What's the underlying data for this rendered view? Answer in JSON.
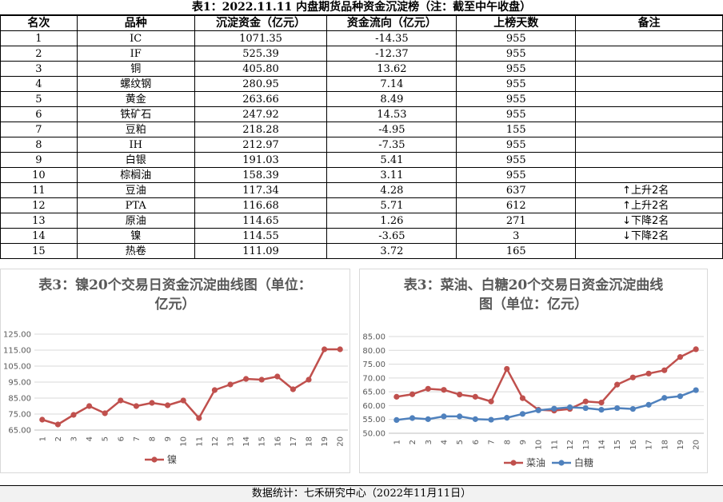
{
  "title": "表1：2022.11.11 内盘期货品种资金沉淀榜（注：截至中午收盘）",
  "table": {
    "headers": [
      "名次",
      "品种",
      "沉淀资金（亿元）",
      "资金流向（亿元）",
      "上榜天数",
      "备注"
    ],
    "rows": [
      [
        "1",
        "IC",
        "1071.35",
        "-14.35",
        "955",
        ""
      ],
      [
        "2",
        "IF",
        "525.39",
        "-12.37",
        "955",
        ""
      ],
      [
        "3",
        "铜",
        "405.80",
        "13.62",
        "955",
        ""
      ],
      [
        "4",
        "螺纹钢",
        "280.95",
        "7.14",
        "955",
        ""
      ],
      [
        "5",
        "黄金",
        "263.66",
        "8.49",
        "955",
        ""
      ],
      [
        "6",
        "铁矿石",
        "247.92",
        "14.53",
        "955",
        ""
      ],
      [
        "7",
        "豆粕",
        "218.28",
        "-4.95",
        "155",
        ""
      ],
      [
        "8",
        "IH",
        "212.97",
        "-7.35",
        "955",
        ""
      ],
      [
        "9",
        "白银",
        "191.03",
        "5.41",
        "955",
        ""
      ],
      [
        "10",
        "棕榈油",
        "158.39",
        "3.11",
        "955",
        ""
      ],
      [
        "11",
        "豆油",
        "117.34",
        "4.28",
        "637",
        "↑上升2名"
      ],
      [
        "12",
        "PTA",
        "116.68",
        "5.71",
        "612",
        "↑上升2名"
      ],
      [
        "13",
        "原油",
        "114.65",
        "1.26",
        "271",
        "↓下降2名"
      ],
      [
        "14",
        "镍",
        "114.55",
        "-3.65",
        "3",
        "↓下降2名"
      ],
      [
        "15",
        "热卷",
        "111.09",
        "3.72",
        "165",
        ""
      ]
    ]
  },
  "footer": "数据统计：七禾研究中心（2022年11月11日）",
  "chart_data": [
    {
      "type": "line",
      "title": "表3：镍20个交易日资金沉淀曲线图（单位：亿元）",
      "categories": [
        "1",
        "2",
        "3",
        "4",
        "5",
        "6",
        "7",
        "8",
        "9",
        "10",
        "11",
        "12",
        "13",
        "14",
        "15",
        "16",
        "17",
        "18",
        "19",
        "20"
      ],
      "yticks": [
        "65.00",
        "75.00",
        "85.00",
        "95.00",
        "105.00",
        "115.00",
        "125.00"
      ],
      "ylim": [
        65,
        125
      ],
      "series": [
        {
          "name": "镍",
          "color": "#c0504d",
          "values": [
            71.5,
            68.5,
            74.5,
            80,
            75.5,
            83.5,
            80,
            82,
            80.5,
            83.5,
            72.5,
            90,
            93.5,
            97,
            96.5,
            98.5,
            90.5,
            96.5,
            115.5,
            115.5
          ]
        }
      ]
    },
    {
      "type": "line",
      "title": "表3：菜油、白糖20个交易日资金沉淀曲线图（单位：亿元）",
      "categories": [
        "1",
        "2",
        "3",
        "4",
        "5",
        "6",
        "7",
        "8",
        "9",
        "10",
        "11",
        "12",
        "13",
        "14",
        "15",
        "16",
        "17",
        "18",
        "19",
        "20"
      ],
      "yticks": [
        "50.00",
        "55.00",
        "60.00",
        "65.00",
        "70.00",
        "75.00",
        "80.00",
        "85.00"
      ],
      "ylim": [
        50,
        85
      ],
      "series": [
        {
          "name": "菜油",
          "color": "#c0504d",
          "values": [
            63.2,
            64.1,
            66.1,
            65.7,
            64,
            63.2,
            61.5,
            73.3,
            62.7,
            58.5,
            58.2,
            58.8,
            61.5,
            61.1,
            67.6,
            70.2,
            71.6,
            72.8,
            77.6,
            80.4
          ]
        },
        {
          "name": "白糖",
          "color": "#4f81bd",
          "values": [
            54.8,
            55.5,
            55.1,
            56.1,
            56.1,
            55.1,
            54.9,
            55.6,
            57,
            58.3,
            58.9,
            59.4,
            59.1,
            58.5,
            59.1,
            58.8,
            60.3,
            62.8,
            63.4,
            65.6
          ]
        }
      ]
    }
  ]
}
